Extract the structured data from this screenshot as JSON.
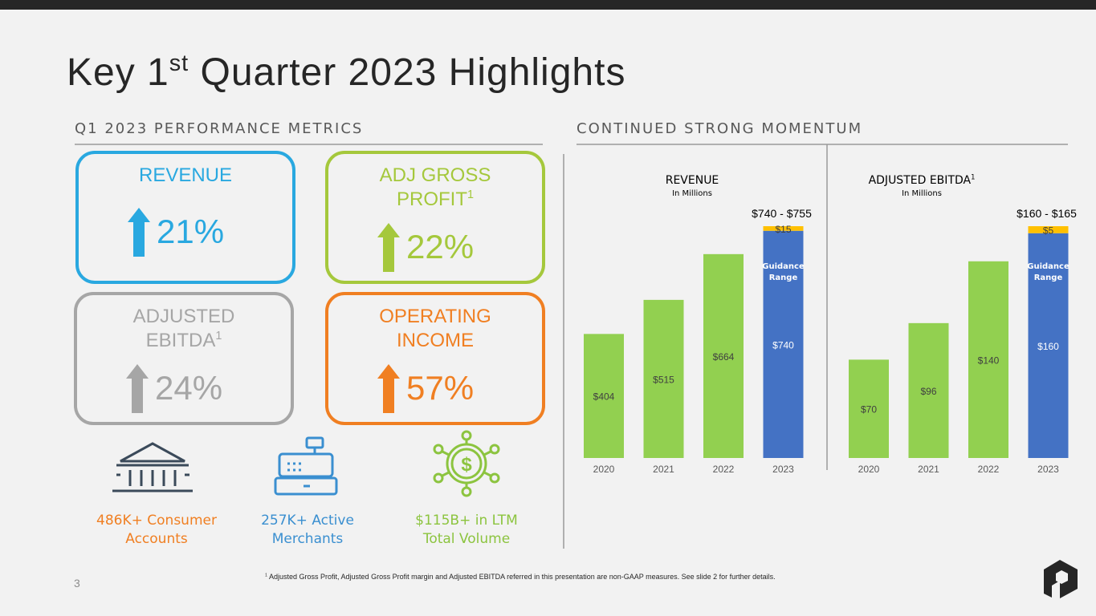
{
  "header": {
    "title": "Key 1",
    "title_sup": "st",
    "title_rest": " Quarter 2023 Highlights",
    "page_number": "3"
  },
  "left_section": {
    "heading": "Q1 2023 PERFORMANCE METRICS",
    "metrics": [
      {
        "lines": [
          "REVENUE"
        ],
        "value": "21%",
        "color": "#29a8e0"
      },
      {
        "lines": [
          "ADJ GROSS",
          "PROFIT"
        ],
        "sup": "1",
        "value": "22%",
        "color": "#a5c83c"
      },
      {
        "lines": [
          "ADJUSTED",
          "EBITDA"
        ],
        "sup": "1",
        "value": "24%",
        "color": "#a6a6a6"
      },
      {
        "lines": [
          "OPERATING",
          "INCOME"
        ],
        "value": "57%",
        "color": "#f07f22"
      }
    ],
    "stats": [
      {
        "lines": [
          "486K+ Consumer",
          "Accounts"
        ],
        "color": "#f07f22"
      },
      {
        "lines": [
          "257K+ Active",
          "Merchants"
        ],
        "color": "#3a8fd0"
      },
      {
        "lines": [
          "$115B+ in LTM",
          "Total Volume"
        ],
        "color": "#8cc43f"
      }
    ]
  },
  "right_section": {
    "heading": "CONTINUED STRONG MOMENTUM"
  },
  "footnote": {
    "sup": "1",
    "text": " Adjusted Gross Profit, Adjusted Gross Profit margin and Adjusted EBITDA referred in this presentation are non-GAAP measures. See slide 2 for further details."
  },
  "chart_data": [
    {
      "type": "bar",
      "stacked": true,
      "title": "REVENUE",
      "subtitle": "In Millions",
      "categories": [
        "2020",
        "2021",
        "2022",
        "2023"
      ],
      "series": [
        {
          "values": [
            404,
            515,
            664,
            740
          ],
          "value_labels": [
            "$404",
            "$515",
            "$664",
            "$740"
          ],
          "colors": [
            "#92d050",
            "#92d050",
            "#92d050",
            "#4472c4"
          ]
        },
        {
          "values": [
            null,
            null,
            null,
            15
          ],
          "value_labels": [
            null,
            null,
            null,
            "$15"
          ],
          "color": "#ffc000"
        }
      ],
      "annotation": "$740 - $755",
      "bar_note": [
        "Guidance",
        "Range"
      ],
      "ylim": [
        0,
        755
      ]
    },
    {
      "type": "bar",
      "stacked": true,
      "title": "ADJUSTED EBITDA",
      "title_sup": "1",
      "subtitle": "In Millions",
      "categories": [
        "2020",
        "2021",
        "2022",
        "2023"
      ],
      "series": [
        {
          "values": [
            70,
            96,
            140,
            160
          ],
          "value_labels": [
            "$70",
            "$96",
            "$140",
            "$160"
          ],
          "colors": [
            "#92d050",
            "#92d050",
            "#92d050",
            "#4472c4"
          ]
        },
        {
          "values": [
            null,
            null,
            null,
            5
          ],
          "value_labels": [
            null,
            null,
            null,
            "$5"
          ],
          "color": "#ffc000"
        }
      ],
      "annotation": "$160 - $165",
      "bar_note": [
        "Guidance",
        "Range"
      ],
      "ylim": [
        0,
        165
      ]
    }
  ]
}
